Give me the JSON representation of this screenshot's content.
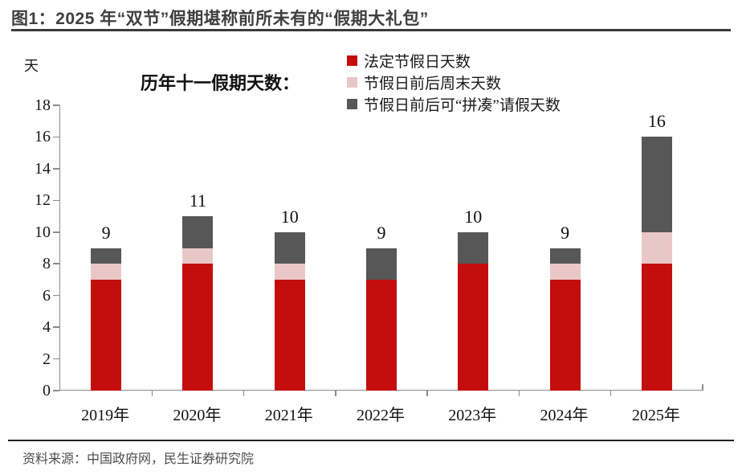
{
  "header": {
    "title": "图1：2025 年“双节”假期堪称前所未有的“假期大礼包”"
  },
  "chart": {
    "unit_label": "天"
  },
  "chart_data": {
    "type": "bar",
    "stacked": true,
    "title": "历年十一假期天数：",
    "categories": [
      "2019年",
      "2020年",
      "2021年",
      "2022年",
      "2023年",
      "2024年",
      "2025年"
    ],
    "series": [
      {
        "name": "法定节假日天数",
        "color": "#c40e0e",
        "values": [
          7,
          8,
          7,
          7,
          8,
          7,
          8
        ]
      },
      {
        "name": "节假日前后周末天数",
        "color": "#eac7c7",
        "values": [
          1,
          1,
          1,
          0,
          0,
          1,
          2
        ]
      },
      {
        "name": "节假日前后可“拼凑”请假天数",
        "color": "#575757",
        "values": [
          1,
          2,
          2,
          2,
          2,
          1,
          6
        ]
      }
    ],
    "totals": [
      9,
      11,
      10,
      9,
      10,
      9,
      16
    ],
    "ylabel": "天",
    "ylim": [
      0,
      18
    ],
    "yticks": [
      0,
      2,
      4,
      6,
      8,
      10,
      12,
      14,
      16,
      18
    ],
    "grid": false,
    "legend_position": "top-center"
  },
  "footer": {
    "source": "资料来源：中国政府网，民生证券研究院"
  }
}
